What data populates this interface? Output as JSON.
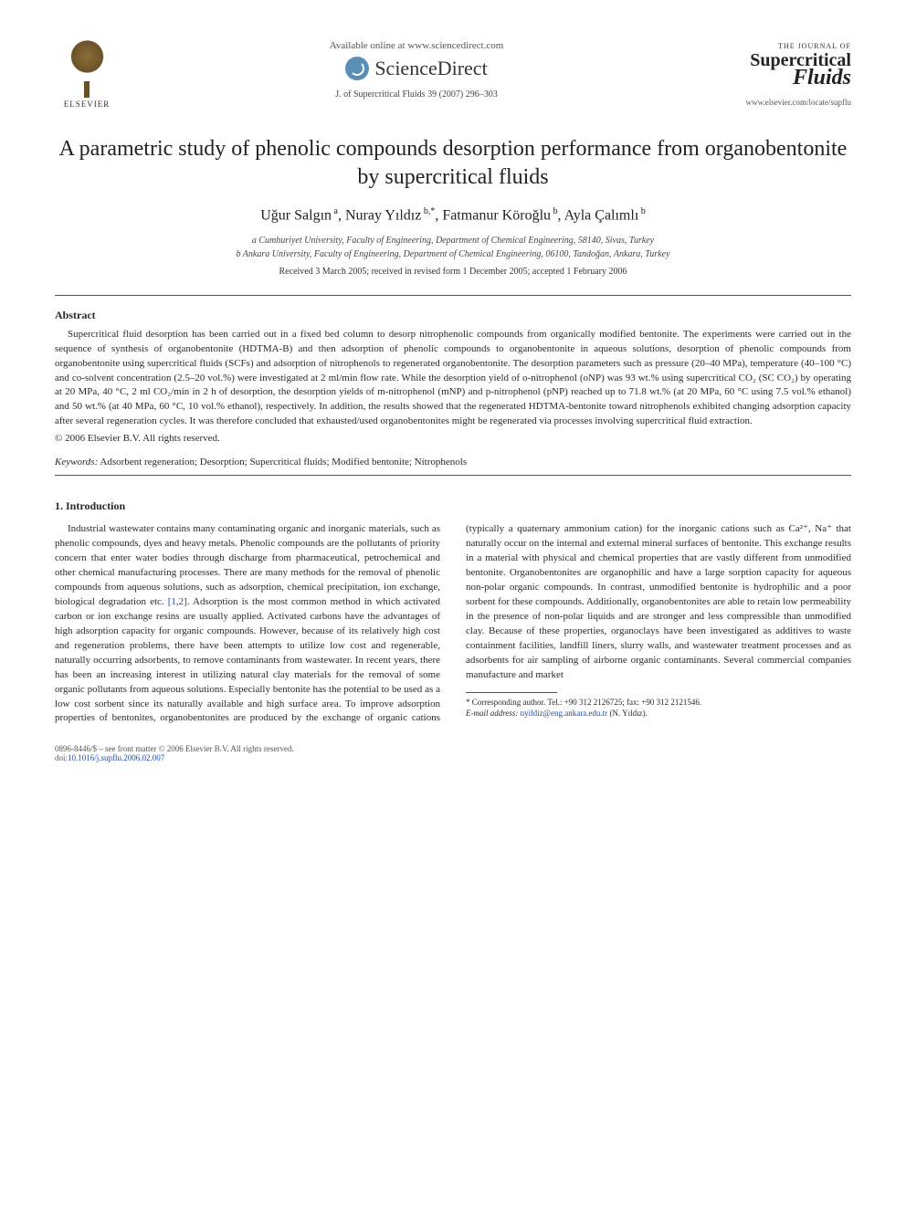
{
  "header": {
    "available_online": "Available online at www.sciencedirect.com",
    "sciencedirect": "ScienceDirect",
    "journal_ref": "J. of Supercritical Fluids 39 (2007) 296–303",
    "elsevier_label": "ELSEVIER",
    "scf_journal_of": "THE JOURNAL OF",
    "scf_super": "Supercritical",
    "scf_fluids": "Fluids",
    "scf_url": "www.elsevier.com/locate/supflu"
  },
  "title": "A parametric study of phenolic compounds desorption performance from organobentonite by supercritical fluids",
  "authors_html": "Uğur Salgın<sup> a</sup>, Nuray Yıldız<sup> b,*</sup>, Fatmanur Köroğlu<sup> b</sup>, Ayla Çalımlı<sup> b</sup>",
  "affiliations": [
    "a Cumhuriyet University, Faculty of Engineering, Department of Chemical Engineering, 58140, Sivas, Turkey",
    "b Ankara University, Faculty of Engineering, Department of Chemical Engineering, 06100, Tandoğan, Ankara, Turkey"
  ],
  "dates": "Received 3 March 2005; received in revised form 1 December 2005; accepted 1 February 2006",
  "abstract": {
    "heading": "Abstract",
    "text": "Supercritical fluid desorption has been carried out in a fixed bed column to desorp nitrophenolic compounds from organically modified bentonite. The experiments were carried out in the sequence of synthesis of organobentonite (HDTMA-B) and then adsorption of phenolic compounds to organobentonite in aqueous solutions, desorption of phenolic compounds from organobentonite using supercritical fluids (SCFs) and adsorption of nitrophenols to regenerated organobentonite. The desorption parameters such as pressure (20–40 MPa), temperature (40–100 °C) and co-solvent concentration (2.5–20 vol.%) were investigated at 2 ml/min flow rate. While the desorption yield of o-nitrophenol (oNP) was 93 wt.% using supercritical CO₂ (SC CO₂) by operating at 20 MPa, 40 °C, 2 ml CO₂/min in 2 h of desorption, the desorption yields of m-nitrophenol (mNP) and p-nitrophenol (pNP) reached up to 71.8 wt.% (at 20 MPa, 60 °C using 7.5 vol.% ethanol) and 50 wt.% (at 40 MPa, 60 °C, 10 vol.% ethanol), respectively. In addition, the results showed that the regenerated HDTMA-bentonite toward nitrophenols exhibited changing adsorption capacity after several regeneration cycles. It was therefore concluded that exhausted/used organobentonites might be regenerated via processes involving supercritical fluid extraction.",
    "copyright": "© 2006 Elsevier B.V. All rights reserved."
  },
  "keywords": {
    "label": "Keywords:",
    "text": " Adsorbent regeneration; Desorption; Supercritical fluids; Modified bentonite; Nitrophenols"
  },
  "section1": {
    "heading": "1.  Introduction",
    "para": "Industrial wastewater contains many contaminating organic and inorganic materials, such as phenolic compounds, dyes and heavy metals. Phenolic compounds are the pollutants of priority concern that enter water bodies through discharge from pharmaceutical, petrochemical and other chemical manufacturing processes. There are many methods for the removal of phenolic compounds from aqueous solutions, such as adsorption, chemical precipitation, ion exchange, biological degradation etc. [1,2]. Adsorption is the most common method in which activated carbon or ion exchange resins are usually applied. Activated carbons have the advantages of high adsorption capacity for organic compounds. However, because of its relatively high cost and regeneration problems, there have been attempts to utilize low cost and regenerable, naturally occurring adsorbents, to remove contaminants from wastewater. In recent years, there has been an increasing interest in utilizing natural clay materials for the removal of some organic pollutants from aqueous solutions. Especially bentonite has the potential to be used as a low cost sorbent since its naturally available and high surface area. To improve adsorption properties of bentonites, organobentonites are produced by the exchange of organic cations (typically a quaternary ammonium cation) for the inorganic cations such as Ca²⁺, Na⁺ that naturally occur on the internal and external mineral surfaces of bentonite. This exchange results in a material with physical and chemical properties that are vastly different from unmodified bentonite. Organobentonites are organophilic and have a large sorption capacity for aqueous non-polar organic compounds. In contrast, unmodified bentonite is hydrophilic and a poor sorbent for these compounds. Additionally, organobentonites are able to retain low permeability in the presence of non-polar liquids and are stronger and less compressible than unmodified clay. Because of these properties, organoclays have been investigated as additives to waste containment facilities, landfill liners, slurry walls, and wastewater treatment processes and as adsorbents for air sampling of airborne organic contaminants. Several commercial companies manufacture and market"
  },
  "footnote": {
    "corr": "* Corresponding author. Tel.: +90 312 2126725; fax: +90 312 2121546.",
    "email_label": "E-mail address:",
    "email": " nyildiz@eng.ankara.edu.tr",
    "email_tail": " (N. Yıldız)."
  },
  "footer": {
    "line1": "0896-8446/$ – see front matter © 2006 Elsevier B.V. All rights reserved.",
    "doi": "doi:10.1016/j.supflu.2006.02.007"
  },
  "colors": {
    "link": "#1a4db3",
    "text": "#2a2a2a",
    "rule": "#555555",
    "bg": "#ffffff"
  }
}
